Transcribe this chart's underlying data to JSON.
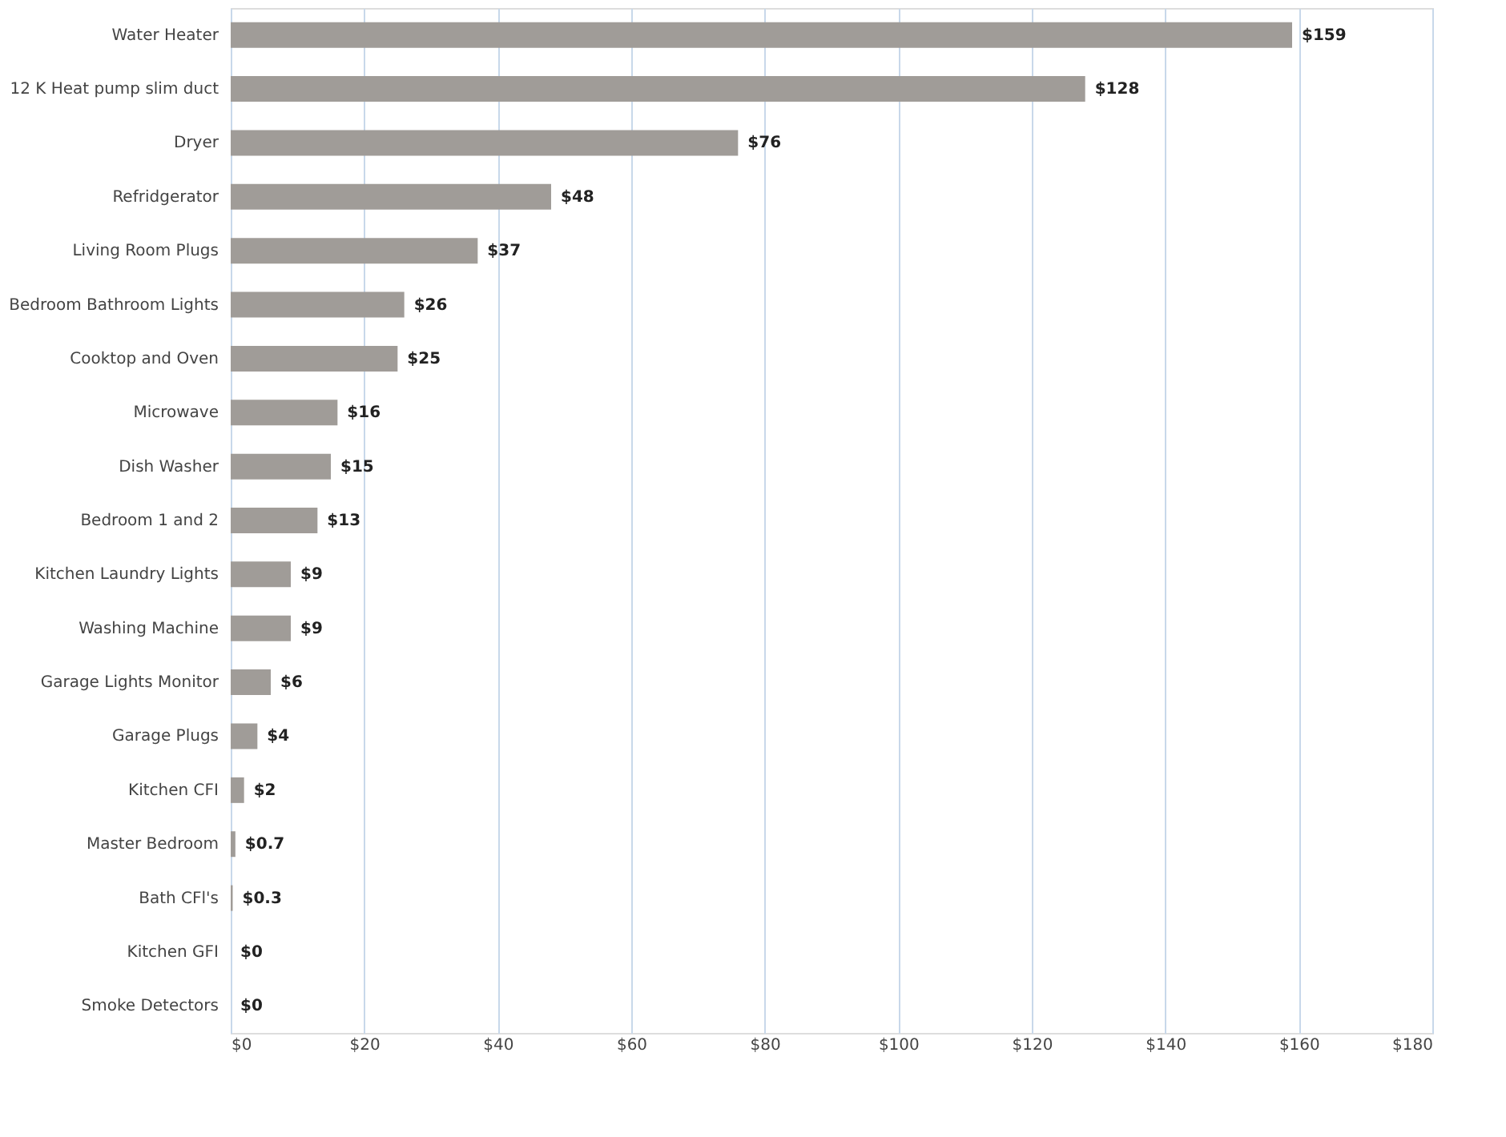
{
  "chart_data": {
    "type": "bar",
    "orientation": "horizontal",
    "categories": [
      "Water Heater",
      "12 K Heat pump slim duct",
      "Dryer",
      "Refridgerator",
      "Living Room Plugs",
      "Bedroom Bathroom Lights",
      "Cooktop and Oven",
      "Microwave",
      "Dish Washer",
      "Bedroom 1 and 2",
      "Kitchen Laundry Lights",
      "Washing Machine",
      "Garage Lights Monitor",
      "Garage Plugs",
      "Kitchen CFI",
      "Master Bedroom",
      "Bath CFl's",
      "Kitchen GFI",
      "Smoke Detectors"
    ],
    "values": [
      159,
      128,
      76,
      48,
      37,
      26,
      25,
      16,
      15,
      13,
      9,
      9,
      6,
      4,
      2,
      0.7,
      0.3,
      0,
      0
    ],
    "value_labels": [
      "$159",
      "$128",
      "$76",
      "$48",
      "$37",
      "$26",
      "$25",
      "$16",
      "$15",
      "$13",
      "$9",
      "$9",
      "$6",
      "$4",
      "$2",
      "$0.7",
      "$0.3",
      "$0",
      "$0"
    ],
    "color": "#a09c98",
    "xlim": [
      0,
      180
    ],
    "xticks": [
      {
        "value": 0,
        "label": "$0"
      },
      {
        "value": 20,
        "label": "$20"
      },
      {
        "value": 40,
        "label": "$40"
      },
      {
        "value": 60,
        "label": "$60"
      },
      {
        "value": 80,
        "label": "$80"
      },
      {
        "value": 100,
        "label": "$100"
      },
      {
        "value": 120,
        "label": "$120"
      },
      {
        "value": 140,
        "label": "$140"
      },
      {
        "value": 160,
        "label": "$160"
      },
      {
        "value": 180,
        "label": "$180"
      }
    ],
    "grid": "x"
  }
}
